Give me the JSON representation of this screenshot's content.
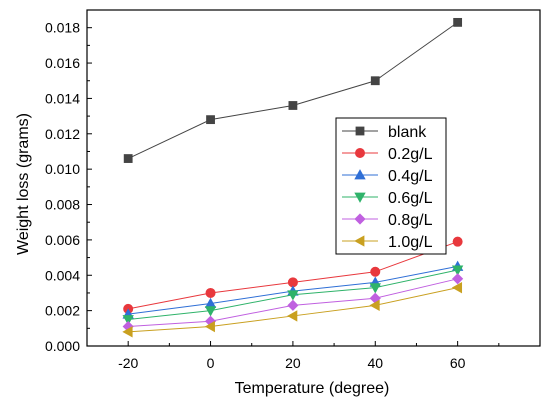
{
  "chart_data": {
    "type": "line",
    "title": "",
    "xlabel": "Temperature (degree)",
    "ylabel": "Weight loss (grams)",
    "x": [
      -20,
      0,
      20,
      40,
      60
    ],
    "xlim": [
      -30,
      80
    ],
    "ylim": [
      0,
      0.019
    ],
    "xticks": [
      "-20",
      "0",
      "20",
      "40",
      "60"
    ],
    "yticks": [
      "0.000",
      "0.002",
      "0.004",
      "0.006",
      "0.008",
      "0.010",
      "0.012",
      "0.014",
      "0.016",
      "0.018"
    ],
    "grid": false,
    "legend_position": "right",
    "series": [
      {
        "name": "blank",
        "color": "#444444",
        "marker": "square",
        "values": [
          0.0106,
          0.0128,
          0.0136,
          0.015,
          0.0183
        ]
      },
      {
        "name": "0.2g/L",
        "color": "#e8383d",
        "marker": "circle",
        "values": [
          0.0021,
          0.003,
          0.0036,
          0.0042,
          0.0059
        ]
      },
      {
        "name": "0.4g/L",
        "color": "#2f6fd6",
        "marker": "triangle-up",
        "values": [
          0.0018,
          0.0024,
          0.0031,
          0.0036,
          0.0045
        ]
      },
      {
        "name": "0.6g/L",
        "color": "#2fb36a",
        "marker": "triangle-down",
        "values": [
          0.0015,
          0.002,
          0.0029,
          0.0033,
          0.0043
        ]
      },
      {
        "name": "0.8g/L",
        "color": "#c060e0",
        "marker": "diamond",
        "values": [
          0.0011,
          0.0014,
          0.0023,
          0.0027,
          0.0038
        ]
      },
      {
        "name": "1.0g/L",
        "color": "#c9a020",
        "marker": "triangle-left",
        "values": [
          0.0008,
          0.0011,
          0.0017,
          0.0023,
          0.0033
        ]
      }
    ]
  }
}
